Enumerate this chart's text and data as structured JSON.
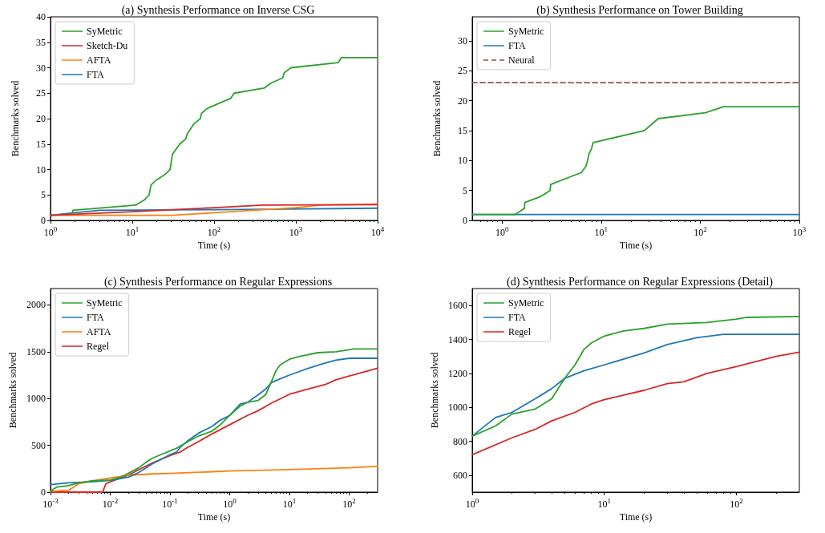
{
  "chart_data": [
    {
      "type": "line",
      "title": "(a) Synthesis Performance on Inverse CSG",
      "xlabel": "Time (s)",
      "ylabel": "Benchmarks solved",
      "log": "x",
      "grid": false,
      "marker": "none",
      "legend": "top left",
      "xlim": [
        1,
        10000
      ],
      "ylim": [
        0,
        40
      ],
      "xticks": [
        {
          "value": 1,
          "label": "10$^{0}$"
        },
        {
          "value": 10,
          "label": "10$^{1}$"
        },
        {
          "value": 100,
          "label": "10$^{2}$"
        },
        {
          "value": 1000,
          "label": "10$^{3}$"
        },
        {
          "value": 10000,
          "label": "10$^{4}$"
        }
      ],
      "yticks": [
        0,
        5,
        10,
        15,
        20,
        25,
        30,
        35,
        40
      ],
      "series": [
        {
          "name": "SyMetric",
          "color": "#2ca02c",
          "x": [
            1.85,
            1.87,
            11,
            14,
            16,
            17,
            20,
            25,
            29,
            31,
            38,
            45,
            47,
            57,
            68,
            70,
            82,
            160,
            176,
            410,
            500,
            690,
            720,
            870,
            3300,
            3600,
            10000
          ],
          "values": [
            1.5,
            2,
            3,
            4,
            5,
            7,
            8,
            9,
            10,
            13,
            15,
            16,
            17,
            19,
            20,
            21,
            22,
            24,
            25,
            26,
            27,
            28,
            29,
            30,
            31,
            32,
            32
          ]
        },
        {
          "name": "Sketch-Du",
          "color": "#d62728",
          "x": [
            1,
            10,
            100,
            400,
            10000
          ],
          "values": [
            1,
            1.7,
            2.5,
            3,
            3.1
          ]
        },
        {
          "name": "AFTA",
          "color": "#ff7f0e",
          "x": [
            1,
            2,
            30,
            100,
            1000,
            2000,
            10000
          ],
          "values": [
            1,
            1,
            1,
            1.5,
            2.5,
            3,
            3.2
          ]
        },
        {
          "name": "FTA",
          "color": "#1f77b4",
          "x": [
            1,
            2,
            4,
            100,
            400,
            10000
          ],
          "values": [
            1,
            1.5,
            2,
            2.1,
            2.2,
            2.4
          ]
        }
      ]
    },
    {
      "type": "line",
      "title": "(b) Synthesis Performance on Tower Building",
      "xlabel": "Time (s)",
      "ylabel": "Benchmarks solved",
      "log": "x",
      "grid": false,
      "marker": "none",
      "legend": "top left",
      "xlim": [
        0.5,
        1000
      ],
      "ylim": [
        0,
        34
      ],
      "xticks": [
        {
          "value": 1,
          "label": "10$^{0}$"
        },
        {
          "value": 10,
          "label": "10$^{1}$"
        },
        {
          "value": 100,
          "label": "10$^{2}$"
        },
        {
          "value": 1000,
          "label": "10$^{3}$"
        }
      ],
      "yticks": [
        0,
        5,
        10,
        15,
        20,
        25,
        30
      ],
      "series": [
        {
          "name": "SyMetric",
          "color": "#2ca02c",
          "x": [
            0.5,
            1.36,
            1.68,
            1.7,
            2.46,
            3.05,
            3.1,
            6.3,
            7,
            7.3,
            7.5,
            8,
            8.3,
            27.4,
            32,
            37.7,
            113,
            172,
            1000
          ],
          "values": [
            1,
            1,
            2,
            3,
            4,
            5,
            6,
            8,
            9,
            10,
            11,
            12,
            13,
            15,
            16,
            17,
            18,
            19,
            19
          ]
        },
        {
          "name": "FTA",
          "color": "#1f77b4",
          "x": [
            0.5,
            1000
          ],
          "values": [
            1,
            1
          ]
        },
        {
          "name": "Neural",
          "color": "#8c564b",
          "line_style": "dashed",
          "x": [
            0.5,
            1000
          ],
          "values": [
            23,
            23
          ]
        }
      ]
    },
    {
      "type": "line",
      "title": "(c) Synthesis Performance on Regular Expressions",
      "xlabel": "Time (s)",
      "ylabel": "Benchmarks solved",
      "log": "x",
      "grid": false,
      "marker": "none",
      "legend": "top left",
      "xlim": [
        0.001,
        300
      ],
      "ylim": [
        0,
        2175
      ],
      "xticks": [
        {
          "value": 0.001,
          "label": "10$^{-3}$"
        },
        {
          "value": 0.01,
          "label": "10$^{-2}$"
        },
        {
          "value": 0.1,
          "label": "10$^{-1}$"
        },
        {
          "value": 1,
          "label": "10$^{0}$"
        },
        {
          "value": 10,
          "label": "10$^{1}$"
        },
        {
          "value": 100,
          "label": "10$^{2}$"
        }
      ],
      "yticks": [
        0,
        500,
        1000,
        1500,
        2000
      ],
      "series": [
        {
          "name": "SyMetric",
          "color": "#2ca02c",
          "x": [
            0.001,
            0.0011,
            0.0013,
            0.002,
            0.003,
            0.005,
            0.01,
            0.015,
            0.02,
            0.03,
            0.04,
            0.05,
            0.07,
            0.1,
            0.13,
            0.2,
            0.3,
            0.5,
            0.7,
            1,
            1.5,
            2,
            3,
            4,
            5,
            6,
            7,
            10,
            15,
            30,
            60,
            120,
            300
          ],
          "values": [
            0,
            30,
            55,
            70,
            100,
            120,
            130,
            160,
            200,
            260,
            320,
            360,
            400,
            440,
            470,
            540,
            600,
            650,
            720,
            820,
            920,
            960,
            980,
            1040,
            1180,
            1300,
            1360,
            1420,
            1450,
            1490,
            1500,
            1530,
            1530
          ]
        },
        {
          "name": "FTA",
          "color": "#1f77b4",
          "x": [
            0.001,
            0.002,
            0.005,
            0.01,
            0.02,
            0.03,
            0.05,
            0.1,
            0.13,
            0.15,
            0.2,
            0.3,
            0.5,
            0.7,
            1,
            1.5,
            2,
            3,
            4,
            5,
            7,
            10,
            20,
            40,
            60,
            100,
            300
          ],
          "values": [
            80,
            100,
            110,
            125,
            160,
            210,
            300,
            400,
            430,
            480,
            550,
            630,
            700,
            770,
            820,
            940,
            960,
            1040,
            1100,
            1170,
            1210,
            1250,
            1320,
            1380,
            1410,
            1430,
            1430
          ]
        },
        {
          "name": "AFTA",
          "color": "#ff7f0e",
          "x": [
            0.001,
            0.002,
            0.003,
            0.005,
            0.01,
            0.02,
            0.05,
            0.1,
            1,
            10,
            100,
            300
          ],
          "values": [
            10,
            20,
            90,
            120,
            150,
            180,
            195,
            200,
            225,
            240,
            260,
            275
          ]
        },
        {
          "name": "Regel",
          "color": "#d62728",
          "x": [
            0.001,
            0.0075,
            0.008,
            0.0085,
            0.01,
            0.02,
            0.03,
            0.05,
            0.1,
            0.15,
            0.2,
            0.3,
            0.5,
            1,
            2,
            3,
            5,
            10,
            20,
            40,
            60,
            100,
            300
          ],
          "values": [
            0,
            0,
            50,
            90,
            110,
            180,
            240,
            310,
            390,
            430,
            480,
            540,
            620,
            720,
            820,
            870,
            950,
            1045,
            1100,
            1150,
            1200,
            1240,
            1325
          ]
        }
      ]
    },
    {
      "type": "line",
      "title": "(d) Synthesis Performance on Regular Expressions (Detail)",
      "xlabel": "Time (s)",
      "ylabel": "Benchmarks solved",
      "log": "x",
      "grid": false,
      "marker": "none",
      "legend": "top left",
      "xlim": [
        1,
        300
      ],
      "ylim": [
        500,
        1700
      ],
      "xticks": [
        {
          "value": 1,
          "label": "10$^{0}$"
        },
        {
          "value": 10,
          "label": "10$^{1}$"
        },
        {
          "value": 100,
          "label": "10$^{2}$"
        }
      ],
      "yticks": [
        600,
        800,
        1000,
        1200,
        1400,
        1600
      ],
      "series": [
        {
          "name": "SyMetric",
          "color": "#2ca02c",
          "x": [
            1,
            1.5,
            2,
            3,
            4,
            5,
            6,
            7,
            8,
            10,
            14,
            20,
            30,
            60,
            100,
            120,
            300
          ],
          "values": [
            830,
            890,
            960,
            990,
            1050,
            1170,
            1250,
            1340,
            1380,
            1420,
            1450,
            1465,
            1490,
            1500,
            1520,
            1530,
            1535
          ]
        },
        {
          "name": "FTA",
          "color": "#1f77b4",
          "x": [
            1,
            1.5,
            2,
            3,
            4,
            5,
            7,
            10,
            20,
            30,
            50,
            80,
            300
          ],
          "values": [
            830,
            940,
            970,
            1050,
            1110,
            1170,
            1215,
            1250,
            1320,
            1370,
            1410,
            1430,
            1430
          ]
        },
        {
          "name": "Regel",
          "color": "#d62728",
          "x": [
            1,
            2,
            3,
            4,
            6,
            8,
            10,
            20,
            30,
            40,
            60,
            100,
            200,
            300
          ],
          "values": [
            720,
            820,
            870,
            920,
            970,
            1020,
            1045,
            1100,
            1140,
            1150,
            1200,
            1240,
            1300,
            1325
          ]
        }
      ]
    }
  ]
}
